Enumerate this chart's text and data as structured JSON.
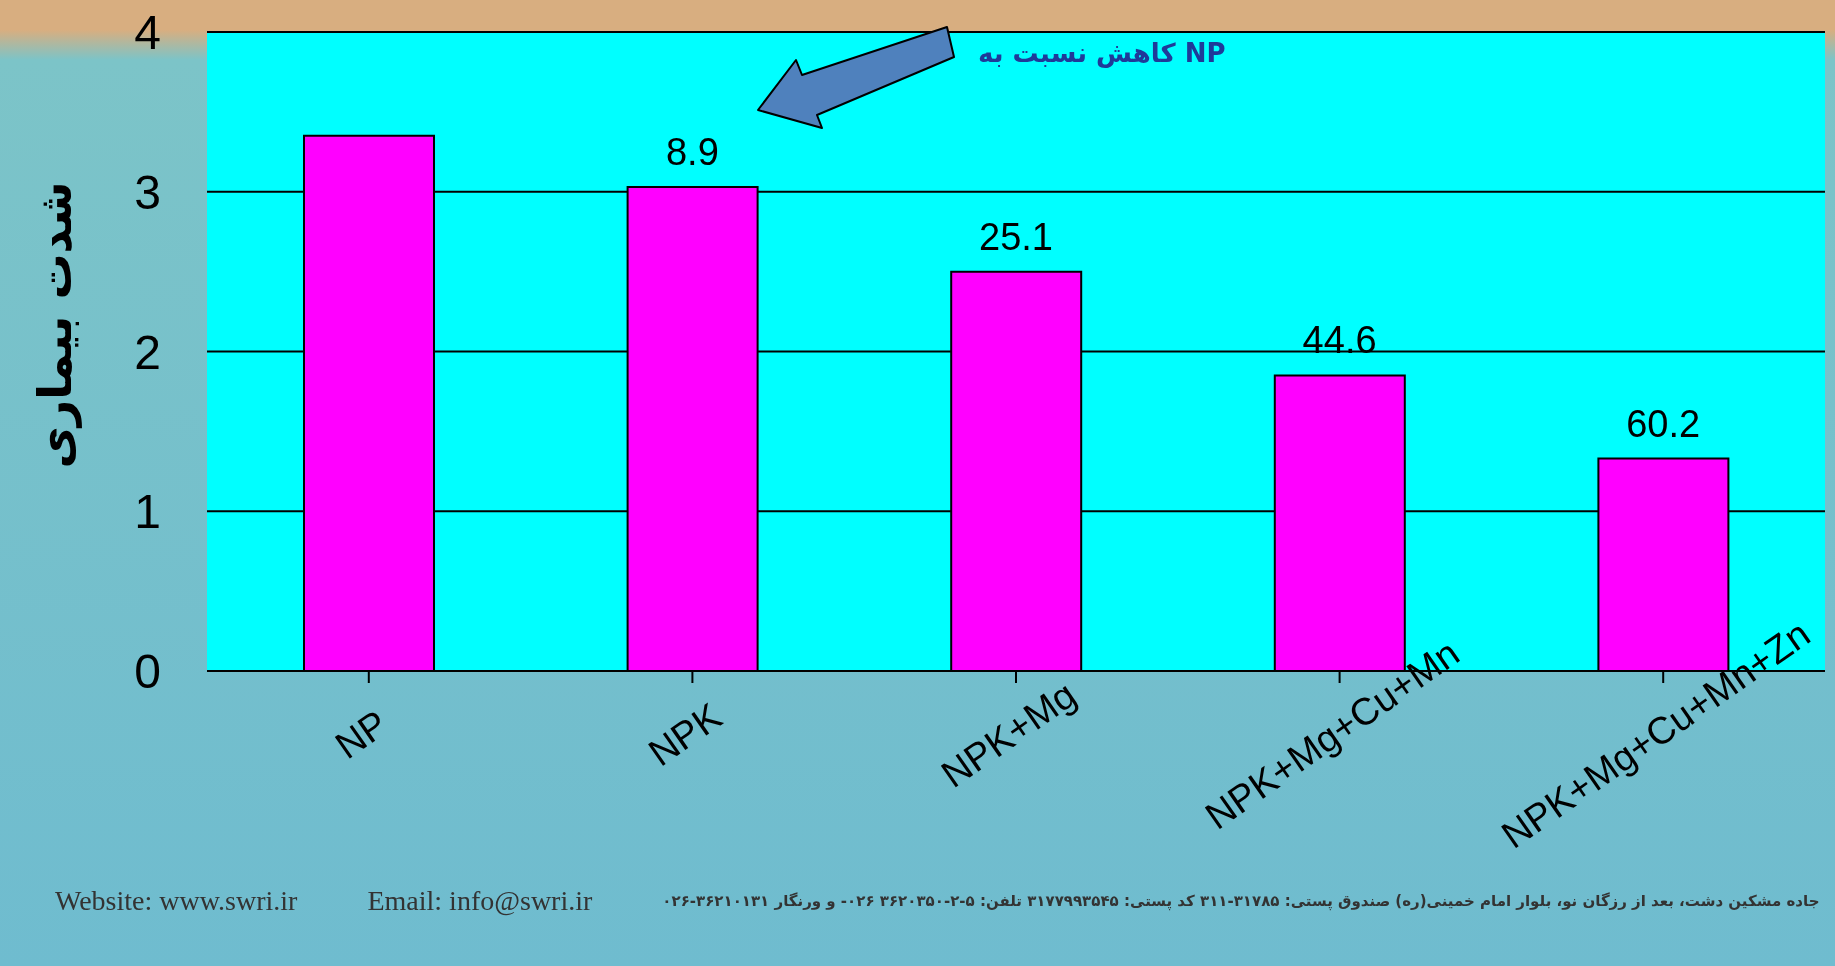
{
  "chart_data": {
    "type": "bar",
    "ylabel": "شدت بیماری",
    "categories": [
      "NP",
      "NPK",
      "NPK+Mg",
      "NPK+Mg+Cu+Mn",
      "NPK+Mg+Cu+Mn+Zn"
    ],
    "values": [
      3.35,
      3.03,
      2.5,
      1.85,
      1.33
    ],
    "color": "#ff00ff",
    "ylim": [
      0,
      4
    ],
    "yticks": [
      0,
      1,
      2,
      3,
      4
    ],
    "grid": "y",
    "legend": false,
    "annotations": [
      "کاهش نسبت به NP",
      {
        "text": "8.9",
        "x": "NPK",
        "y": 3.03
      },
      {
        "text": "25.1",
        "x": "NPK+Mg",
        "y": 2.5
      },
      {
        "text": "44.6",
        "x": "NPK+Mg+Cu+Mn",
        "y": 1.85
      },
      {
        "text": "60.2",
        "x": "NPK+Mg+Cu+Mn+Zn",
        "y": 1.33
      },
      "Website: www.swri.ir",
      "Email: info@swri.ir",
      "جاده مشکین دشت، بعد از رزگان نو، بلوار امام خمینی(ره)  صندوق پستی: ۳۱۷۸۵-۳۱۱  کد پستی: ۳۱۷۷۹۹۳۵۴۵  تلفن: ۵-۲-۳۶۲۰۳۵۰ ۰۲۶-  و ورنگار ۳۶۲۱۰۱۳۱-۰۲۶"
    ]
  }
}
